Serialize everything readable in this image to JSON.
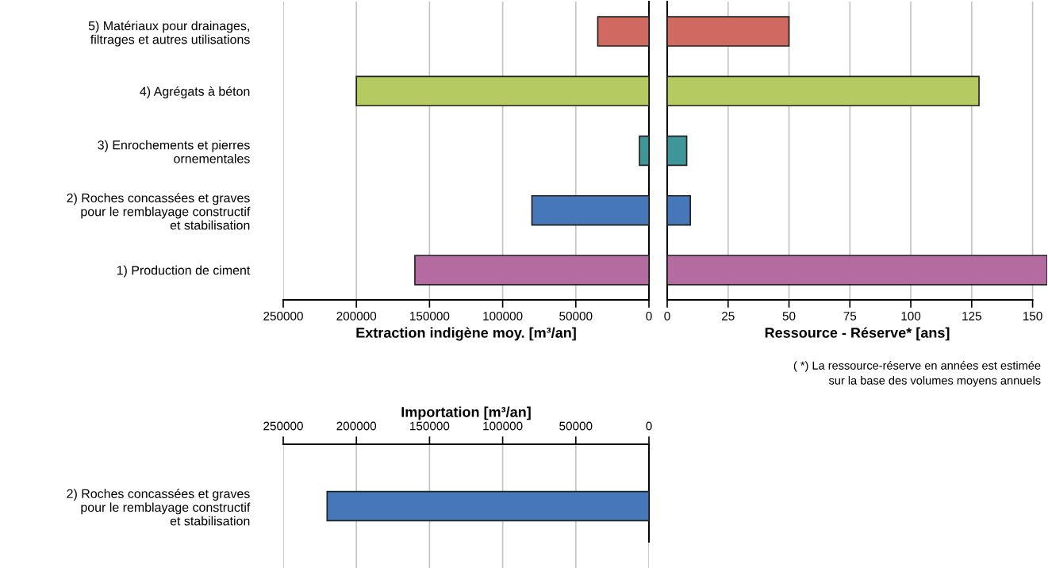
{
  "chart_data": [
    {
      "type": "bar",
      "orientation": "horizontal",
      "categories": [
        "5) Matériaux pour drainages,\nfiltrages et autres utilisations",
        "4) Agrégats à béton",
        "3) Enrochements et pierres\nornementales",
        "2) Roches concassées et graves\npour le remblayage constructif\net stabilisation",
        "1) Production de ciment"
      ],
      "values": [
        35000,
        200000,
        6500,
        80000,
        160000
      ],
      "colors": [
        "#d0695f",
        "#b5cb62",
        "#3f9699",
        "#4677b8",
        "#b46b9f"
      ],
      "xlim": [
        250000,
        0
      ],
      "xticks": [
        250000,
        200000,
        150000,
        100000,
        50000,
        0
      ],
      "xlabel": "Extraction indigène moy. [m³/an]",
      "grid": "x"
    },
    {
      "type": "bar",
      "orientation": "horizontal",
      "categories": [
        null,
        null,
        null,
        null,
        null
      ],
      "values": [
        50,
        128,
        8,
        9.5,
        156
      ],
      "colors": [
        "#d0695f",
        "#b5cb62",
        "#3f9699",
        "#4677b8",
        "#b46b9f"
      ],
      "xlim": [
        0,
        156
      ],
      "xticks": [
        0,
        25,
        50,
        75,
        100,
        125,
        150
      ],
      "xlabel": "Ressource - Réserve* [ans]",
      "grid": "x",
      "tick_labels": "x",
      "annotations": [
        "( *) La ressource-réserve en années est estimée\nsur la base des volumes moyens annuels"
      ]
    },
    {
      "type": "bar",
      "orientation": "horizontal",
      "categories": [
        "2) Roches concassées et graves\npour le remblayage constructif\net stabilisation"
      ],
      "values": [
        220000
      ],
      "colors": [
        "#4677b8"
      ],
      "xlim": [
        250000,
        0
      ],
      "xticks": [
        250000,
        200000,
        150000,
        100000,
        50000,
        0
      ],
      "xlabel": "Importation [m³/an]",
      "grid": "x"
    }
  ]
}
